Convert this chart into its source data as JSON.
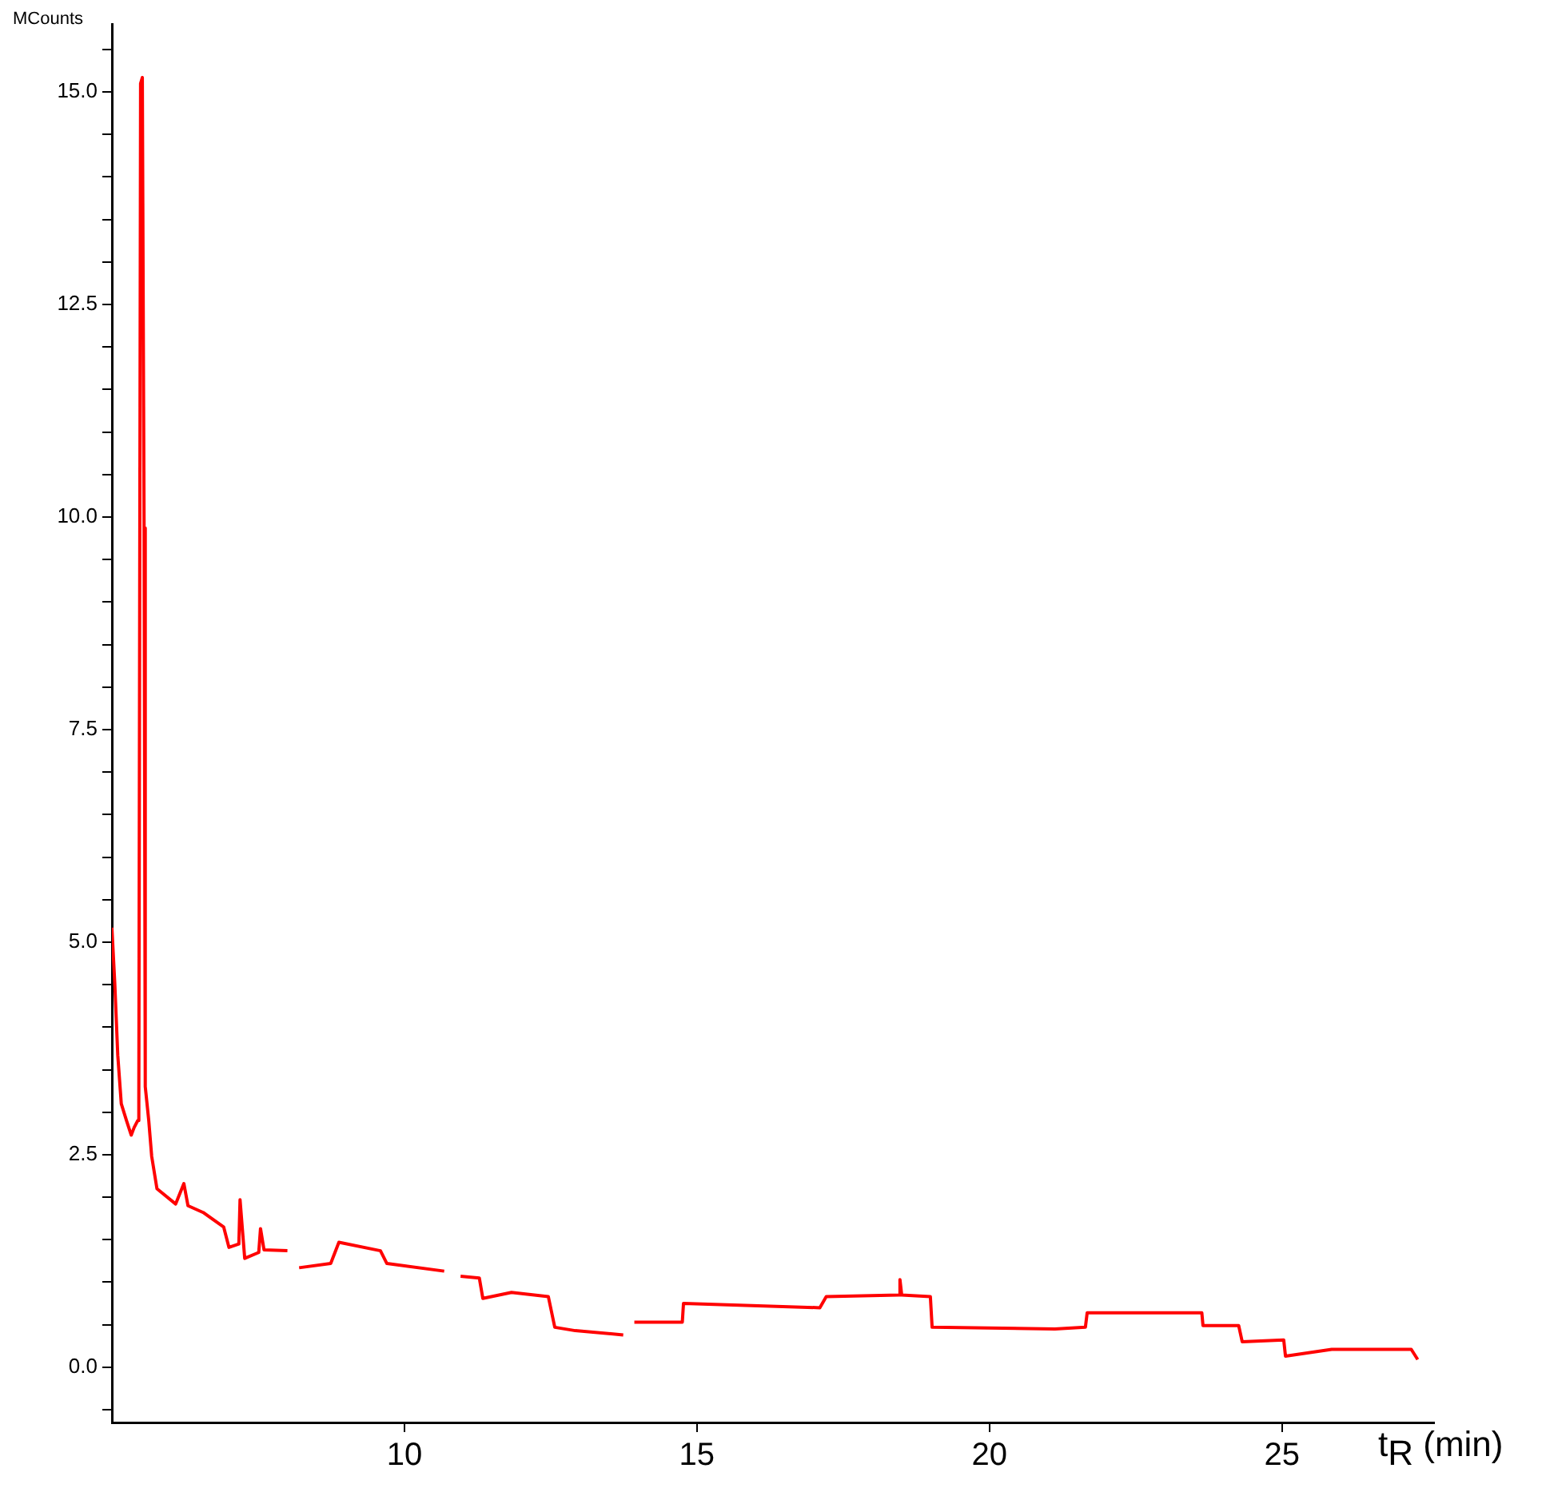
{
  "chart_data": {
    "type": "line",
    "xlabel": "t$_{R}$ (min)",
    "ylabel": "MCounts",
    "xlim": [
      5.0,
      27.6
    ],
    "ylim": [
      -0.65,
      15.8
    ],
    "xticks": [
      10,
      15,
      20,
      25
    ],
    "yticks": [
      {
        "value": -0.5,
        "label": null
      },
      {
        "value": 0,
        "label": "0.0"
      },
      {
        "value": 0.5,
        "label": null
      },
      {
        "value": 1,
        "label": null
      },
      {
        "value": 1.5,
        "label": null
      },
      {
        "value": 2,
        "label": null
      },
      {
        "value": 2.5,
        "label": "2.5"
      },
      {
        "value": 3,
        "label": null
      },
      {
        "value": 3.5,
        "label": null
      },
      {
        "value": 4,
        "label": null
      },
      {
        "value": 4.5,
        "label": null
      },
      {
        "value": 5,
        "label": "5.0"
      },
      {
        "value": 5.5,
        "label": null
      },
      {
        "value": 6,
        "label": null
      },
      {
        "value": 6.5,
        "label": null
      },
      {
        "value": 7,
        "label": null
      },
      {
        "value": 7.5,
        "label": "7.5"
      },
      {
        "value": 8,
        "label": null
      },
      {
        "value": 8.5,
        "label": null
      },
      {
        "value": 9,
        "label": null
      },
      {
        "value": 9.5,
        "label": null
      },
      {
        "value": 10,
        "label": "10.0"
      },
      {
        "value": 10.5,
        "label": null
      },
      {
        "value": 11,
        "label": null
      },
      {
        "value": 11.5,
        "label": null
      },
      {
        "value": 12,
        "label": null
      },
      {
        "value": 12.5,
        "label": "12.5"
      },
      {
        "value": 13,
        "label": null
      },
      {
        "value": 13.5,
        "label": null
      },
      {
        "value": 14,
        "label": null
      },
      {
        "value": 14.5,
        "label": null
      },
      {
        "value": 15,
        "label": "15.0"
      },
      {
        "value": 15.5,
        "label": null
      }
    ],
    "grid": false,
    "legend": false,
    "marker": "none",
    "series": [
      {
        "color": "#ff0000",
        "x": [
          5.0,
          5.05,
          5.1,
          5.16,
          5.25,
          5.33,
          5.38,
          5.44,
          5.46,
          5.49,
          5.52,
          5.55,
          5.57,
          5.63,
          5.68,
          5.77,
          6.09,
          6.23,
          6.3,
          6.56,
          6.91,
          7.0,
          7.17,
          7.19,
          7.27,
          7.51,
          7.54,
          7.6,
          8.0,
          8.1,
          8.2,
          8.74,
          8.88,
          9.59,
          9.7,
          10.68,
          10.82,
          10.96,
          11.28,
          11.34,
          11.83,
          12.46,
          12.57,
          12.92,
          13.74,
          13.83,
          13.93,
          14.75,
          14.77,
          17.1,
          17.21,
          18.45,
          18.47,
          18.5,
          18.99,
          19.02,
          21.12,
          21.64,
          21.67,
          23.63,
          23.65,
          24.26,
          24.32,
          25.03,
          25.06,
          25.85,
          27.21,
          27.32
        ],
        "values": [
          5.17,
          4.5,
          3.67,
          3.1,
          2.9,
          2.73,
          2.82,
          2.9,
          3.1,
          15.1,
          15.17,
          9.87,
          3.3,
          2.9,
          2.48,
          2.1,
          1.92,
          2.16,
          1.9,
          1.82,
          1.65,
          1.41,
          1.45,
          1.97,
          1.28,
          1.35,
          1.63,
          1.38,
          1.37,
          null,
          1.17,
          1.22,
          1.47,
          1.37,
          1.22,
          1.13,
          null,
          1.07,
          1.05,
          0.81,
          0.88,
          0.83,
          0.47,
          0.43,
          0.38,
          null,
          0.53,
          0.53,
          0.75,
          0.7,
          0.83,
          0.85,
          1.03,
          0.85,
          0.83,
          0.47,
          0.45,
          0.47,
          0.64,
          0.64,
          0.49,
          0.49,
          0.3,
          0.32,
          0.13,
          0.21,
          0.21,
          0.09
        ]
      }
    ]
  }
}
